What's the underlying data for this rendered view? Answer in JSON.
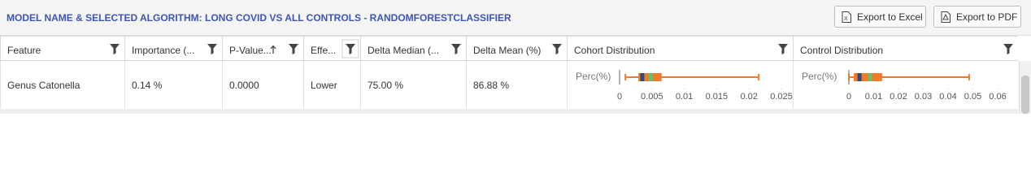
{
  "header": {
    "title": "MODEL NAME & SELECTED ALGORITHM: LONG COVID VS ALL CONTROLS - RANDOMFORESTCLASSIFIER",
    "buttons": [
      "Export to Excel",
      "Export to PDF"
    ]
  },
  "table": {
    "columns": [
      "Feature",
      "Importance (...",
      "P-Value...",
      "Effe...",
      "Delta Median (...",
      "Delta Mean (%)",
      "Cohort Distribution",
      "Control Distribution"
    ],
    "rows": [
      {
        "cells": [
          "Genus Catonella",
          "0.14 %",
          "0.0000",
          "Lower",
          "75.00 %",
          "86.88 %"
        ],
        "cohort_distribution": {
          "type": "box",
          "axis_label": "Perc(%)",
          "xlim": [
            0,
            0.025
          ],
          "xticks": [
            0,
            0.005,
            0.01,
            0.015,
            0.02,
            0.025
          ],
          "min": 0.0009,
          "q1": 0.0029,
          "median": 0.0035,
          "mean": 0.0048,
          "q3": 0.0065,
          "max": 0.0215,
          "colors": {
            "box": "#f07c2a",
            "median": "#2c4a7c",
            "mean": "#6abf69"
          }
        },
        "control_distribution": {
          "type": "box",
          "axis_label": "Perc(%)",
          "xlim": [
            0,
            0.06
          ],
          "xticks": [
            0,
            0.01,
            0.02,
            0.03,
            0.04,
            0.05,
            0.06
          ],
          "min": 0.0,
          "q1": 0.002,
          "median": 0.0043,
          "mean": 0.0085,
          "q3": 0.0134,
          "max": 0.0485,
          "colors": {
            "box": "#f07c2a",
            "median": "#2c4a7c",
            "mean": "#6abf69"
          }
        }
      }
    ]
  }
}
